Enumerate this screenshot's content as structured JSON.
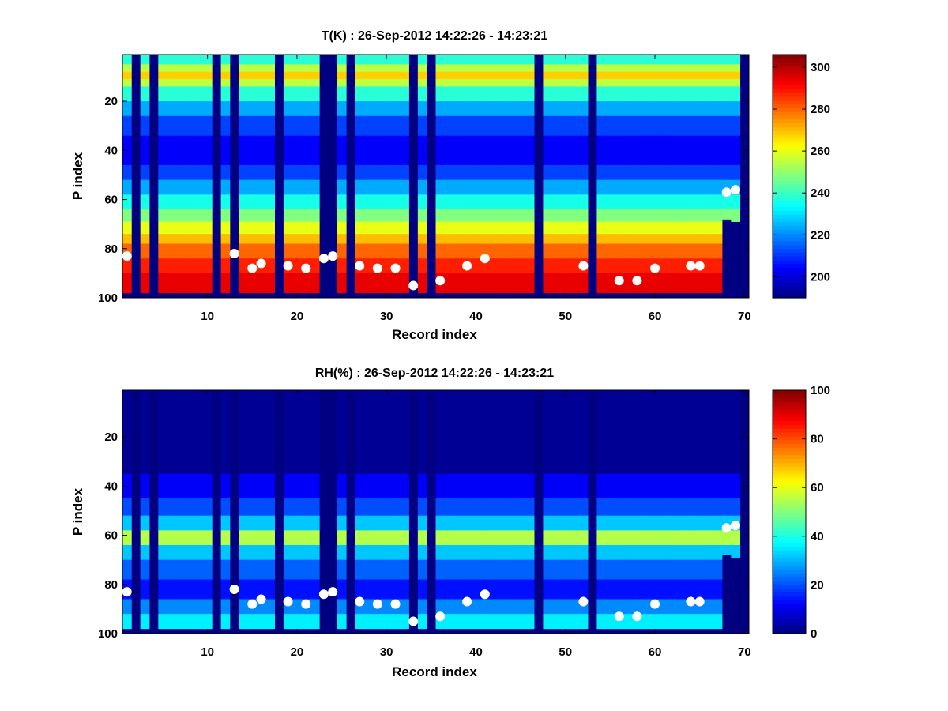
{
  "chart_data": [
    {
      "type": "heatmap",
      "title": "T(K) : 26-Sep-2012 14:22:26 - 14:23:21",
      "xlabel": "Record index",
      "ylabel": "P index",
      "xlim": [
        0.5,
        70.5
      ],
      "ylim": [
        1,
        100
      ],
      "y_reversed": true,
      "xticks": [
        10,
        20,
        30,
        40,
        50,
        60,
        70
      ],
      "yticks": [
        20,
        40,
        60,
        80,
        100
      ],
      "colormap": "jet",
      "clim": [
        190,
        306
      ],
      "colorbar_ticks": [
        200,
        220,
        240,
        260,
        280,
        300
      ],
      "profile_bands": [
        {
          "p_from": 1,
          "p_to": 5,
          "value": 238
        },
        {
          "p_from": 5,
          "p_to": 8,
          "value": 255
        },
        {
          "p_from": 8,
          "p_to": 11,
          "value": 268
        },
        {
          "p_from": 11,
          "p_to": 14,
          "value": 255
        },
        {
          "p_from": 14,
          "p_to": 20,
          "value": 238
        },
        {
          "p_from": 20,
          "p_to": 26,
          "value": 224
        },
        {
          "p_from": 26,
          "p_to": 34,
          "value": 212
        },
        {
          "p_from": 34,
          "p_to": 46,
          "value": 204
        },
        {
          "p_from": 46,
          "p_to": 52,
          "value": 212
        },
        {
          "p_from": 52,
          "p_to": 58,
          "value": 224
        },
        {
          "p_from": 58,
          "p_to": 64,
          "value": 236
        },
        {
          "p_from": 64,
          "p_to": 69,
          "value": 248
        },
        {
          "p_from": 69,
          "p_to": 74,
          "value": 260
        },
        {
          "p_from": 74,
          "p_to": 78,
          "value": 270
        },
        {
          "p_from": 78,
          "p_to": 84,
          "value": 280
        },
        {
          "p_from": 84,
          "p_to": 90,
          "value": 288
        },
        {
          "p_from": 90,
          "p_to": 98,
          "value": 294
        }
      ],
      "missing_records": [
        2,
        4,
        11,
        13,
        18,
        23,
        24,
        26,
        33,
        35,
        47,
        53,
        70
      ],
      "truncated_records": [
        {
          "record": 68,
          "p_bottom": 68
        },
        {
          "record": 69,
          "p_bottom": 69
        }
      ],
      "markers": [
        {
          "x": 1,
          "y": 83
        },
        {
          "x": 13,
          "y": 82
        },
        {
          "x": 15,
          "y": 88
        },
        {
          "x": 16,
          "y": 86
        },
        {
          "x": 19,
          "y": 87
        },
        {
          "x": 21,
          "y": 88
        },
        {
          "x": 23,
          "y": 84
        },
        {
          "x": 24,
          "y": 83
        },
        {
          "x": 27,
          "y": 87
        },
        {
          "x": 29,
          "y": 88
        },
        {
          "x": 31,
          "y": 88
        },
        {
          "x": 33,
          "y": 95
        },
        {
          "x": 36,
          "y": 93
        },
        {
          "x": 39,
          "y": 87
        },
        {
          "x": 41,
          "y": 84
        },
        {
          "x": 52,
          "y": 87
        },
        {
          "x": 56,
          "y": 93
        },
        {
          "x": 58,
          "y": 93
        },
        {
          "x": 60,
          "y": 88
        },
        {
          "x": 64,
          "y": 87
        },
        {
          "x": 65,
          "y": 87
        },
        {
          "x": 68,
          "y": 57
        },
        {
          "x": 69,
          "y": 56
        }
      ]
    },
    {
      "type": "heatmap",
      "title": "RH(%) : 26-Sep-2012 14:22:26 - 14:23:21",
      "xlabel": "Record index",
      "ylabel": "P index",
      "xlim": [
        0.5,
        70.5
      ],
      "ylim": [
        1,
        100
      ],
      "y_reversed": true,
      "xticks": [
        10,
        20,
        30,
        40,
        50,
        60,
        70
      ],
      "yticks": [
        20,
        40,
        60,
        80,
        100
      ],
      "colormap": "jet",
      "clim": [
        0,
        100
      ],
      "colorbar_ticks": [
        0,
        20,
        40,
        60,
        80,
        100
      ],
      "profile_bands": [
        {
          "p_from": 1,
          "p_to": 35,
          "value": 2
        },
        {
          "p_from": 35,
          "p_to": 45,
          "value": 12
        },
        {
          "p_from": 45,
          "p_to": 52,
          "value": 20
        },
        {
          "p_from": 52,
          "p_to": 58,
          "value": 32
        },
        {
          "p_from": 58,
          "p_to": 64,
          "value": 55
        },
        {
          "p_from": 64,
          "p_to": 70,
          "value": 32
        },
        {
          "p_from": 70,
          "p_to": 78,
          "value": 22
        },
        {
          "p_from": 78,
          "p_to": 86,
          "value": 14
        },
        {
          "p_from": 86,
          "p_to": 92,
          "value": 26
        },
        {
          "p_from": 92,
          "p_to": 98,
          "value": 36
        }
      ],
      "missing_records": [
        2,
        4,
        11,
        13,
        18,
        23,
        24,
        26,
        33,
        35,
        47,
        53,
        70
      ],
      "truncated_records": [
        {
          "record": 68,
          "p_bottom": 68
        },
        {
          "record": 69,
          "p_bottom": 69
        }
      ],
      "markers": [
        {
          "x": 1,
          "y": 83
        },
        {
          "x": 13,
          "y": 82
        },
        {
          "x": 15,
          "y": 88
        },
        {
          "x": 16,
          "y": 86
        },
        {
          "x": 19,
          "y": 87
        },
        {
          "x": 21,
          "y": 88
        },
        {
          "x": 23,
          "y": 84
        },
        {
          "x": 24,
          "y": 83
        },
        {
          "x": 27,
          "y": 87
        },
        {
          "x": 29,
          "y": 88
        },
        {
          "x": 31,
          "y": 88
        },
        {
          "x": 33,
          "y": 95
        },
        {
          "x": 36,
          "y": 93
        },
        {
          "x": 39,
          "y": 87
        },
        {
          "x": 41,
          "y": 84
        },
        {
          "x": 52,
          "y": 87
        },
        {
          "x": 56,
          "y": 93
        },
        {
          "x": 58,
          "y": 93
        },
        {
          "x": 60,
          "y": 88
        },
        {
          "x": 64,
          "y": 87
        },
        {
          "x": 65,
          "y": 87
        },
        {
          "x": 68,
          "y": 57
        },
        {
          "x": 69,
          "y": 56
        }
      ]
    }
  ]
}
